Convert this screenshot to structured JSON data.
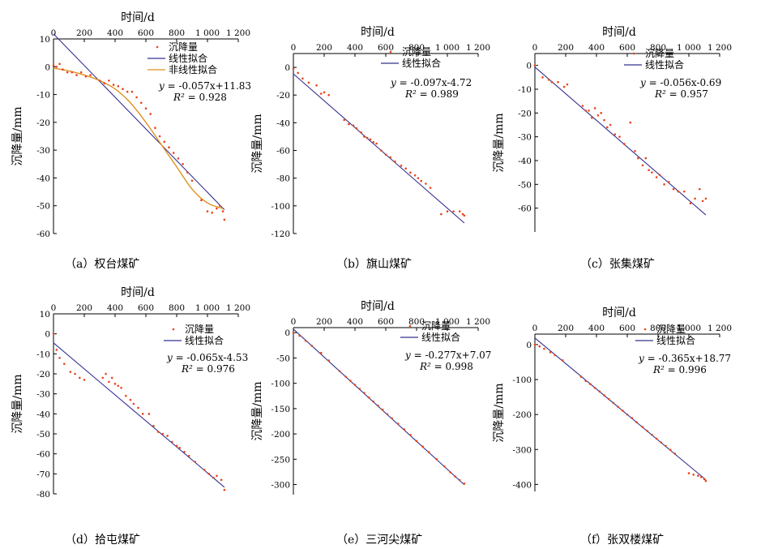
{
  "chart_data": [
    {
      "type": "scatter",
      "panel": "a",
      "caption": "（a）权台煤矿",
      "xlabel": "时间/d",
      "ylabel": "沉降量/mm",
      "xlim": [
        0,
        1200
      ],
      "ylim": [
        -60,
        10
      ],
      "xticks": [
        0,
        200,
        400,
        600,
        800,
        1000,
        1200
      ],
      "xtick_labels": [
        "0",
        "200",
        "400",
        "600",
        "800",
        "1 000",
        "1 200"
      ],
      "yticks": [
        10,
        0,
        -10,
        -20,
        -30,
        -40,
        -50,
        -60
      ],
      "legend": [
        "沉降量",
        "线性拟合",
        "非线性拟合"
      ],
      "equation": {
        "prefix": "y",
        "text": " = -0.057x+11.83",
        "r2_label": "R²",
        "r2": "0.928"
      },
      "fit_slope": -0.057,
      "fit_intercept": 11.83,
      "nonlinear_fit": {
        "x": [
          0,
          100,
          200,
          300,
          400,
          500,
          600,
          700,
          800,
          900,
          1000,
          1100
        ],
        "y": [
          -0.5,
          -1.5,
          -3,
          -5,
          -8,
          -13,
          -20,
          -28,
          -36,
          -44,
          -49,
          -51
        ]
      },
      "series": [
        {
          "name": "沉降量",
          "x": [
            0,
            20,
            40,
            60,
            90,
            120,
            150,
            180,
            210,
            240,
            300,
            330,
            360,
            390,
            420,
            450,
            480,
            510,
            540,
            570,
            600,
            630,
            660,
            690,
            720,
            750,
            780,
            810,
            840,
            870,
            900,
            960,
            1000,
            1030,
            1060,
            1080,
            1100,
            1110
          ],
          "y": [
            0.5,
            0,
            1,
            -1,
            -2,
            -2,
            -3,
            -2,
            -3.5,
            -3,
            -5,
            -6,
            -5,
            -6.5,
            -7,
            -8,
            -9,
            -9,
            -11,
            -13,
            -15,
            -17,
            -22,
            -25,
            -27,
            -29,
            -31,
            -33,
            -35,
            -38,
            -41,
            -48,
            -52,
            -52.5,
            -51,
            -50,
            -52,
            -55
          ]
        }
      ]
    },
    {
      "type": "scatter",
      "panel": "b",
      "caption": "（b）旗山煤矿",
      "xlabel": "时间/d",
      "ylabel": "沉降量/mm",
      "xlim": [
        0,
        1200
      ],
      "ylim": [
        -120,
        10
      ],
      "xticks": [
        0,
        200,
        400,
        600,
        800,
        1000,
        1200
      ],
      "xtick_labels": [
        "0",
        "200",
        "400",
        "600",
        "800",
        "1 000",
        "1 200"
      ],
      "yticks": [
        0,
        -20,
        -40,
        -60,
        -80,
        -100,
        -120
      ],
      "legend": [
        "沉降量",
        "线性拟合"
      ],
      "equation": {
        "prefix": "y",
        "text": " = -0.097x-4.72",
        "r2_label": "R²",
        "r2": "0.989"
      },
      "fit_slope": -0.097,
      "fit_intercept": -4.72,
      "series": [
        {
          "name": "沉降量",
          "x": [
            0,
            30,
            60,
            100,
            150,
            180,
            200,
            230,
            330,
            360,
            390,
            410,
            440,
            460,
            480,
            500,
            520,
            540,
            570,
            600,
            630,
            660,
            700,
            730,
            760,
            790,
            810,
            830,
            860,
            890,
            960,
            1000,
            1040,
            1080,
            1100,
            1110
          ],
          "y": [
            -1,
            -4,
            -8,
            -11,
            -13,
            -19,
            -18,
            -20,
            -38,
            -41,
            -42,
            -44,
            -47,
            -50,
            -51,
            -52,
            -54,
            -55,
            -60,
            -63,
            -65,
            -68,
            -71,
            -73,
            -76,
            -78,
            -80,
            -82,
            -84,
            -87,
            -106,
            -104,
            -104,
            -104,
            -106,
            -107
          ]
        }
      ]
    },
    {
      "type": "scatter",
      "panel": "c",
      "caption": "（c）张集煤矿",
      "xlabel": "时间/d",
      "ylabel": "沉降量/mm",
      "xlim": [
        0,
        1200
      ],
      "ylim": [
        -70,
        5
      ],
      "xticks": [
        0,
        200,
        400,
        600,
        800,
        1000,
        1200
      ],
      "xtick_labels": [
        "0",
        "200",
        "400",
        "600",
        "800",
        "1 000",
        "1 200"
      ],
      "yticks": [
        0,
        -10,
        -20,
        -30,
        -40,
        -50,
        -60
      ],
      "legend": [
        "沉降量",
        "线性拟合"
      ],
      "equation": {
        "prefix": "y",
        "text": " = -0.056x-0.69",
        "r2_label": "R²",
        "r2": "0.957"
      },
      "fit_slope": -0.056,
      "fit_intercept": -0.69,
      "series": [
        {
          "name": "沉降量",
          "x": [
            0,
            50,
            90,
            110,
            150,
            190,
            210,
            310,
            330,
            350,
            370,
            390,
            410,
            430,
            450,
            470,
            490,
            520,
            550,
            580,
            620,
            650,
            670,
            700,
            720,
            740,
            760,
            790,
            810,
            840,
            870,
            900,
            930,
            970,
            1010,
            1040,
            1070,
            1090,
            1110
          ],
          "y": [
            0,
            -5,
            -6,
            -7,
            -7,
            -9,
            -8,
            -17,
            -19,
            -19,
            -22,
            -18,
            -21,
            -20,
            -23,
            -26,
            -25,
            -29,
            -30,
            -33,
            -24,
            -36,
            -39,
            -42,
            -39,
            -44,
            -45,
            -47,
            -46,
            -50,
            -49,
            -52,
            -53,
            -53,
            -58,
            -56,
            -52,
            -57,
            -56
          ]
        }
      ]
    },
    {
      "type": "scatter",
      "panel": "d",
      "caption": "（d）拾屯煤矿",
      "xlabel": "时间/d",
      "ylabel": "沉降量/mm",
      "xlim": [
        0,
        1200
      ],
      "ylim": [
        -80,
        10
      ],
      "xticks": [
        0,
        200,
        400,
        600,
        800,
        1000,
        1200
      ],
      "xtick_labels": [
        "0",
        "200",
        "400",
        "600",
        "800",
        "1 000",
        "1 200"
      ],
      "yticks": [
        10,
        0,
        -10,
        -20,
        -30,
        -40,
        -50,
        -60,
        -70,
        -80
      ],
      "legend": [
        "沉降量",
        "线性拟合"
      ],
      "equation": {
        "prefix": "y",
        "text": " = -0.065x-4.53",
        "r2_label": "R²",
        "r2": "0.976"
      },
      "fit_slope": -0.065,
      "fit_intercept": -4.53,
      "series": [
        {
          "name": "沉降量",
          "x": [
            0,
            20,
            40,
            70,
            110,
            140,
            170,
            200,
            320,
            340,
            360,
            380,
            400,
            420,
            440,
            470,
            500,
            520,
            550,
            580,
            620,
            650,
            680,
            710,
            740,
            770,
            800,
            820,
            850,
            880,
            920,
            980,
            1010,
            1040,
            1060,
            1090,
            1110
          ],
          "y": [
            0,
            -8,
            -12,
            -15,
            -19,
            -20,
            -22,
            -23,
            -22,
            -20,
            -24,
            -22,
            -25,
            -26,
            -27,
            -31,
            -33,
            -35,
            -37,
            -40,
            -40,
            -46,
            -49,
            -50,
            -51,
            -54,
            -56,
            -57,
            -59,
            -61,
            -64,
            -68,
            -70,
            -72,
            -71,
            -73,
            -78
          ]
        }
      ]
    },
    {
      "type": "scatter",
      "panel": "e",
      "caption": "（e）三河尖煤矿",
      "xlabel": "时间/d",
      "ylabel": "沉降量/mm",
      "xlim": [
        0,
        1200
      ],
      "ylim": [
        -320,
        10
      ],
      "xticks": [
        0,
        200,
        400,
        600,
        800,
        1000,
        1200
      ],
      "xtick_labels": [
        "0",
        "200",
        "400",
        "600",
        "800",
        "1 000",
        "1 200"
      ],
      "yticks": [
        0,
        -50,
        -100,
        -150,
        -200,
        -250,
        -300
      ],
      "legend": [
        "沉降量",
        "线性拟合"
      ],
      "equation": {
        "prefix": "y",
        "text": " = -0.277x+7.07",
        "r2_label": "R²",
        "r2": "0.998"
      },
      "fit_slope": -0.277,
      "fit_intercept": 7.07,
      "series": [
        {
          "name": "沉降量",
          "x": [
            0,
            40,
            80,
            120,
            180,
            230,
            300,
            340,
            370,
            400,
            430,
            460,
            490,
            520,
            550,
            580,
            610,
            640,
            680,
            720,
            760,
            800,
            840,
            880,
            930,
            980,
            1020,
            1050,
            1080,
            1110
          ],
          "y": [
            0,
            -6,
            -16,
            -26,
            -40,
            -55,
            -76,
            -87,
            -95,
            -103,
            -111,
            -119,
            -128,
            -136,
            -144,
            -152,
            -161,
            -169,
            -180,
            -191,
            -202,
            -214,
            -225,
            -236,
            -250,
            -264,
            -276,
            -284,
            -291,
            -298
          ]
        }
      ]
    },
    {
      "type": "scatter",
      "panel": "f",
      "caption": "（f）张双楼煤矿",
      "xlabel": "时间/d",
      "ylabel": "沉降量/mm",
      "xlim": [
        0,
        1200
      ],
      "ylim": [
        -420,
        30
      ],
      "xticks": [
        0,
        200,
        400,
        600,
        800,
        1000,
        1200
      ],
      "xtick_labels": [
        "0",
        "200",
        "400",
        "600",
        "800",
        "1 000",
        "1 200"
      ],
      "yticks": [
        0,
        -100,
        -200,
        -300,
        -400
      ],
      "legend": [
        "沉降量",
        "线性拟合"
      ],
      "equation": {
        "prefix": "y",
        "text": " = -0.365x+18.77",
        "r2_label": "R²",
        "r2": "0.996"
      },
      "fit_slope": -0.365,
      "fit_intercept": 18.77,
      "series": [
        {
          "name": "沉降量",
          "x": [
            0,
            30,
            60,
            100,
            130,
            180,
            300,
            330,
            360,
            390,
            420,
            450,
            480,
            510,
            540,
            570,
            600,
            630,
            660,
            700,
            730,
            760,
            790,
            820,
            850,
            880,
            910,
            1000,
            1030,
            1060,
            1080,
            1100,
            1110
          ],
          "y": [
            0,
            -5,
            -12,
            -22,
            -30,
            -45,
            -92,
            -104,
            -113,
            -124,
            -134,
            -145,
            -156,
            -167,
            -178,
            -189,
            -200,
            -210,
            -222,
            -236,
            -247,
            -258,
            -269,
            -280,
            -290,
            -301,
            -312,
            -368,
            -372,
            -375,
            -379,
            -385,
            -390
          ]
        }
      ]
    }
  ],
  "colors": {
    "scatter": "#e8441b",
    "linear_fit": "#33318f",
    "nonlinear_fit": "#e0901c",
    "axis": "#000000"
  }
}
